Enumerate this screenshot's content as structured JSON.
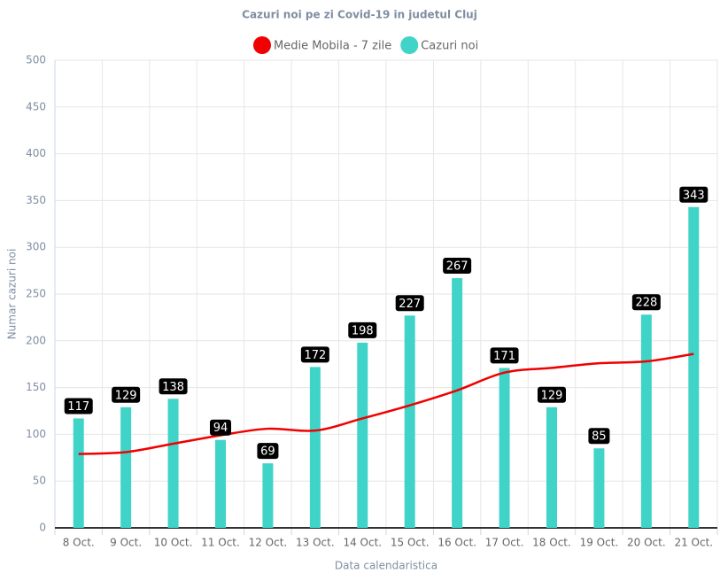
{
  "chart_data": {
    "type": "bar-line",
    "title": "Cazuri noi pe zi Covid-19 in judetul Cluj",
    "x_label": "Data calendaristica",
    "y_label": "Numar cazuri noi",
    "categories": [
      "8 Oct.",
      "9 Oct.",
      "10 Oct.",
      "11 Oct.",
      "12 Oct.",
      "13 Oct.",
      "14 Oct.",
      "15 Oct.",
      "16 Oct.",
      "17 Oct.",
      "18 Oct.",
      "19 Oct.",
      "20 Oct.",
      "21 Oct."
    ],
    "series": [
      {
        "name": "Medie Mobila - 7 zile",
        "color": "#f00000",
        "type": "line",
        "values": [
          79,
          81,
          90,
          99,
          106,
          104,
          117,
          131,
          147,
          166,
          171,
          176,
          178,
          186
        ]
      },
      {
        "name": "Cazuri noi",
        "color": "#40d4c8",
        "type": "bar",
        "values": [
          117,
          129,
          138,
          94,
          69,
          172,
          198,
          227,
          267,
          171,
          129,
          85,
          228,
          343
        ]
      }
    ],
    "ylim": [
      0,
      500
    ],
    "yticks": [
      0,
      50,
      100,
      150,
      200,
      250,
      300,
      350,
      400,
      450,
      500
    ],
    "grid": true
  }
}
